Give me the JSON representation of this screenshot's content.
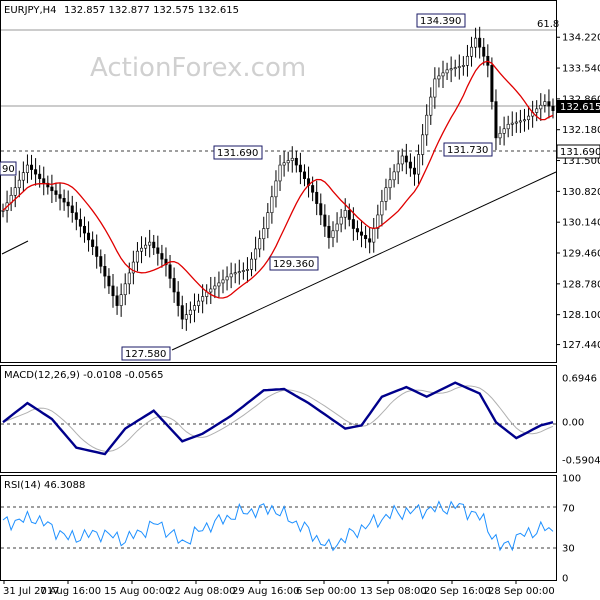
{
  "header": {
    "symbol": "EURJPY,H4",
    "ohlc": "132.857 132.877 132.575 132.615"
  },
  "watermark": "ActionForex.com",
  "colors": {
    "candle": "#000000",
    "ma": "#e00000",
    "macd": "#00008b",
    "signal": "#b0b0b0",
    "rsi": "#1e90ff",
    "label_border": "#1a1a66"
  },
  "chart_data": {
    "type": "candlestick",
    "price": {
      "ylim": [
        127.1,
        134.6
      ],
      "ticks": [
        "134.220",
        "133.540",
        "132.860",
        "132.180",
        "131.500",
        "130.820",
        "130.140",
        "129.460",
        "128.780",
        "128.100",
        "127.440"
      ],
      "current": "132.615",
      "level_label": "131.690",
      "fib_label": "61.8",
      "left_edge_label": "90",
      "annotations": [
        "134.390",
        "131.690",
        "131.730",
        "129.360",
        "127.580"
      ],
      "anchors": [
        {
          "i": 0,
          "v": 130.4
        },
        {
          "i": 3,
          "v": 130.9
        },
        {
          "i": 6,
          "v": 131.4
        },
        {
          "i": 10,
          "v": 131.0
        },
        {
          "i": 16,
          "v": 130.5
        },
        {
          "i": 22,
          "v": 129.6
        },
        {
          "i": 28,
          "v": 128.3
        },
        {
          "i": 33,
          "v": 129.5
        },
        {
          "i": 36,
          "v": 129.7
        },
        {
          "i": 40,
          "v": 129.2
        },
        {
          "i": 44,
          "v": 128.0
        },
        {
          "i": 50,
          "v": 128.6
        },
        {
          "i": 56,
          "v": 129.0
        },
        {
          "i": 60,
          "v": 129.1
        },
        {
          "i": 64,
          "v": 130.0
        },
        {
          "i": 68,
          "v": 131.4
        },
        {
          "i": 71,
          "v": 131.55
        },
        {
          "i": 76,
          "v": 130.8
        },
        {
          "i": 80,
          "v": 129.8
        },
        {
          "i": 84,
          "v": 130.4
        },
        {
          "i": 86,
          "v": 130.0
        },
        {
          "i": 90,
          "v": 129.7
        },
        {
          "i": 94,
          "v": 130.9
        },
        {
          "i": 98,
          "v": 131.6
        },
        {
          "i": 101,
          "v": 131.2
        },
        {
          "i": 104,
          "v": 132.5
        },
        {
          "i": 106,
          "v": 133.3
        },
        {
          "i": 109,
          "v": 133.5
        },
        {
          "i": 113,
          "v": 133.6
        },
        {
          "i": 116,
          "v": 134.2
        },
        {
          "i": 119,
          "v": 133.6
        },
        {
          "i": 121,
          "v": 132.0
        },
        {
          "i": 124,
          "v": 132.3
        },
        {
          "i": 128,
          "v": 132.4
        },
        {
          "i": 133,
          "v": 132.8
        },
        {
          "i": 135,
          "v": 132.6
        }
      ]
    },
    "macd": {
      "label": "MACD(12,26,9) -0.0108 -0.0565",
      "ylim": [
        -0.75,
        0.85
      ],
      "ticks": [
        "0.6946",
        "0.00",
        "-0.5904"
      ],
      "anchors": [
        {
          "i": 0,
          "v": 0.0
        },
        {
          "i": 6,
          "v": 0.3
        },
        {
          "i": 12,
          "v": 0.05
        },
        {
          "i": 18,
          "v": -0.4
        },
        {
          "i": 25,
          "v": -0.5
        },
        {
          "i": 30,
          "v": -0.1
        },
        {
          "i": 37,
          "v": 0.18
        },
        {
          "i": 44,
          "v": -0.3
        },
        {
          "i": 49,
          "v": -0.18
        },
        {
          "i": 56,
          "v": 0.1
        },
        {
          "i": 64,
          "v": 0.5
        },
        {
          "i": 69,
          "v": 0.52
        },
        {
          "i": 75,
          "v": 0.3
        },
        {
          "i": 84,
          "v": -0.1
        },
        {
          "i": 88,
          "v": -0.05
        },
        {
          "i": 93,
          "v": 0.4
        },
        {
          "i": 99,
          "v": 0.55
        },
        {
          "i": 104,
          "v": 0.4
        },
        {
          "i": 111,
          "v": 0.62
        },
        {
          "i": 117,
          "v": 0.45
        },
        {
          "i": 121,
          "v": 0.0
        },
        {
          "i": 126,
          "v": -0.25
        },
        {
          "i": 132,
          "v": -0.05
        },
        {
          "i": 135,
          "v": 0.0
        }
      ]
    },
    "rsi": {
      "label": "RSI(14) 46.3088",
      "ylim": [
        0,
        100
      ],
      "ticks": [
        "100",
        "70",
        "30",
        "0"
      ],
      "levels": [
        70,
        30
      ],
      "anchors": [
        {
          "i": 0,
          "v": 55
        },
        {
          "i": 8,
          "v": 60
        },
        {
          "i": 16,
          "v": 40
        },
        {
          "i": 24,
          "v": 45
        },
        {
          "i": 30,
          "v": 38
        },
        {
          "i": 38,
          "v": 55
        },
        {
          "i": 44,
          "v": 35
        },
        {
          "i": 50,
          "v": 52
        },
        {
          "i": 58,
          "v": 65
        },
        {
          "i": 66,
          "v": 70
        },
        {
          "i": 74,
          "v": 50
        },
        {
          "i": 80,
          "v": 30
        },
        {
          "i": 88,
          "v": 50
        },
        {
          "i": 96,
          "v": 65
        },
        {
          "i": 104,
          "v": 68
        },
        {
          "i": 112,
          "v": 72
        },
        {
          "i": 118,
          "v": 58
        },
        {
          "i": 122,
          "v": 30
        },
        {
          "i": 128,
          "v": 44
        },
        {
          "i": 133,
          "v": 50
        },
        {
          "i": 135,
          "v": 46.3
        }
      ]
    },
    "x_ticks": [
      "31 Jul 2017",
      "7 Aug 16:00",
      "15 Aug 00:00",
      "22 Aug 08:00",
      "29 Aug 16:00",
      "6 Sep 00:00",
      "13 Sep 08:00",
      "20 Sep 16:00",
      "28 Sep 00:00"
    ]
  }
}
